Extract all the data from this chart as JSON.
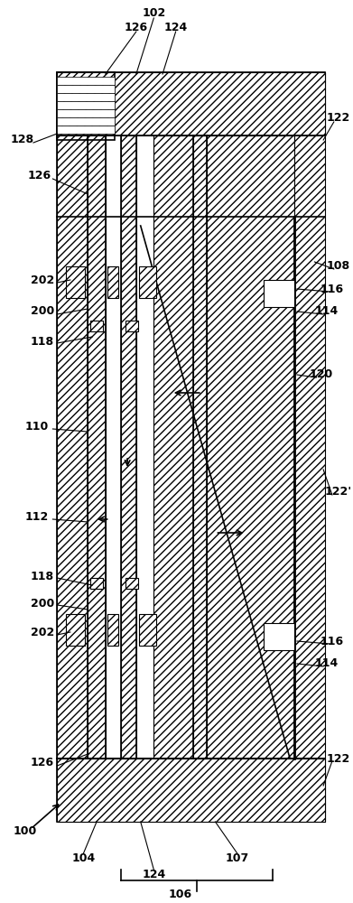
{
  "fig_width": 3.91,
  "fig_height": 10.0,
  "bg_color": "#ffffff",
  "line_color": "#000000"
}
